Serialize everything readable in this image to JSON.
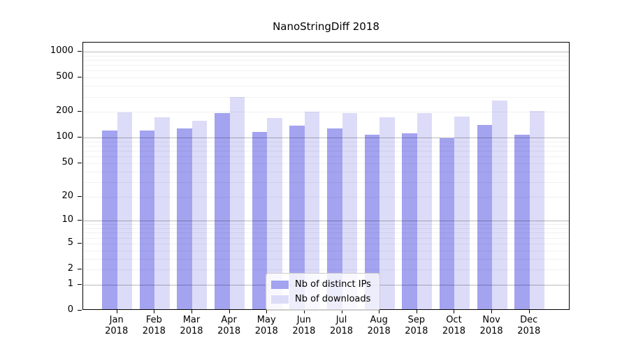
{
  "chart_data": {
    "type": "bar",
    "title": "NanoStringDiff 2018",
    "categories": [
      "Jan",
      "Feb",
      "Mar",
      "Apr",
      "May",
      "Jun",
      "Jul",
      "Aug",
      "Sep",
      "Oct",
      "Nov",
      "Dec"
    ],
    "x_sublabel": "2018",
    "xlabel": "",
    "ylabel": "",
    "y_scale": "log1p",
    "y_ticks": [
      0,
      1,
      2,
      5,
      10,
      20,
      50,
      100,
      200,
      500,
      1000
    ],
    "ylim": [
      0,
      1274
    ],
    "grid": "on",
    "legend_position": "inside-bottom-center",
    "series": [
      {
        "name": "Nb of distinct IPs",
        "color": "#a3a3f0",
        "values": [
          117,
          117,
          123,
          187,
          112,
          133,
          123,
          105,
          109,
          95,
          135,
          104
        ]
      },
      {
        "name": "Nb of downloads",
        "color": "#dcdcf9",
        "values": [
          190,
          166,
          151,
          288,
          163,
          193,
          185,
          166,
          188,
          170,
          261,
          196
        ]
      }
    ],
    "colors": {
      "background": "#ffffff",
      "spine": "#000000",
      "grid_major": "rgba(0,0,0,0.27)",
      "grid_minor": "rgba(0,0,0,0.055)",
      "text": "#000000"
    }
  }
}
